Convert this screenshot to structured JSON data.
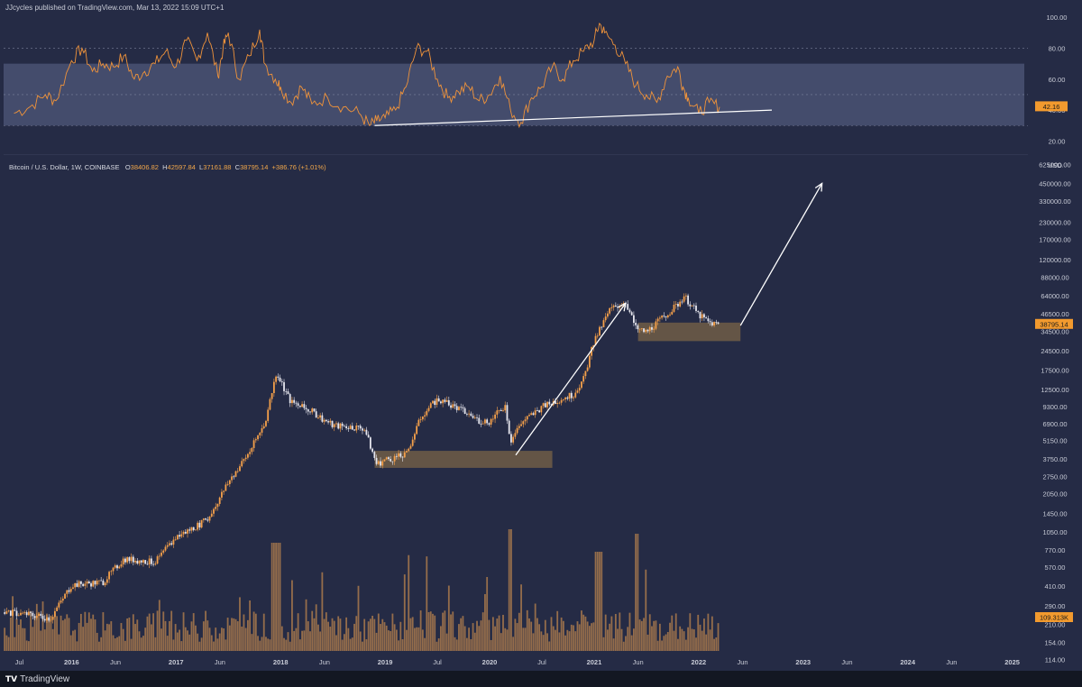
{
  "header": {
    "text": "JJcycles published on TradingView.com, Mar 13, 2022 15:09 UTC+1"
  },
  "legend": {
    "symbol": "Bitcoin / U.S. Dollar, 1W, COINBASE",
    "open_label": "O",
    "open": "38406.82",
    "high_label": "H",
    "high": "42597.84",
    "low_label": "L",
    "low": "37161.88",
    "close_label": "C",
    "close": "38795.14",
    "change": "+386.76 (+1.01%)"
  },
  "footer": {
    "brand": "TradingView",
    "logo_glyph": "TV"
  },
  "colors": {
    "background": "#252b45",
    "candle_up": "#f5a04a",
    "candle_down": "#e6e6ee",
    "rsi_line": "#f0933a",
    "band": "#4a5273",
    "zone": "#7a6447",
    "arrow": "#ffffff",
    "volume": "#c58a4f"
  },
  "chart_data": [
    {
      "type": "line",
      "name": "RSI pane",
      "yaxis_ticks": [
        "100.00",
        "80.00",
        "60.00",
        "40.00",
        "20.00"
      ],
      "ylim": [
        15,
        103
      ],
      "band": [
        30,
        70
      ],
      "last_value": "42.16",
      "x": [
        2015.45,
        2015.6,
        2015.75,
        2015.85,
        2016.0,
        2016.1,
        2016.2,
        2016.3,
        2016.4,
        2016.5,
        2016.6,
        2016.7,
        2016.8,
        2016.9,
        2017.0,
        2017.1,
        2017.2,
        2017.3,
        2017.4,
        2017.45,
        2017.5,
        2017.6,
        2017.7,
        2017.8,
        2017.85,
        2017.95,
        2018.0,
        2018.1,
        2018.2,
        2018.3,
        2018.45,
        2018.6,
        2018.75,
        2018.85,
        2018.92,
        2019.0,
        2019.1,
        2019.2,
        2019.3,
        2019.4,
        2019.5,
        2019.6,
        2019.7,
        2019.8,
        2019.9,
        2020.0,
        2020.1,
        2020.2,
        2020.3,
        2020.4,
        2020.5,
        2020.6,
        2020.7,
        2020.8,
        2020.9,
        2021.0,
        2021.05,
        2021.1,
        2021.2,
        2021.3,
        2021.4,
        2021.5,
        2021.6,
        2021.7,
        2021.8,
        2021.85,
        2021.9,
        2022.0,
        2022.1,
        2022.2
      ],
      "values": [
        38,
        42,
        50,
        46,
        72,
        80,
        65,
        70,
        68,
        75,
        60,
        65,
        70,
        78,
        68,
        85,
        72,
        90,
        62,
        80,
        90,
        60,
        75,
        92,
        70,
        60,
        55,
        45,
        55,
        44,
        48,
        42,
        38,
        30,
        33,
        35,
        40,
        55,
        80,
        78,
        60,
        48,
        52,
        55,
        46,
        50,
        62,
        40,
        32,
        48,
        55,
        68,
        60,
        72,
        78,
        85,
        96,
        90,
        82,
        70,
        56,
        50,
        45,
        62,
        68,
        55,
        48,
        38,
        45,
        42
      ],
      "trendline": {
        "x": [
          2018.9,
          2022.7
        ],
        "y": [
          30,
          40
        ]
      }
    },
    {
      "type": "line",
      "name": "Bitcoin / U.S. Dollar weekly candles",
      "title": "Bitcoin / U.S. Dollar, 1W, COINBASE",
      "ylabel": "USD",
      "yscale": "log",
      "ylim": [
        100,
        620000
      ],
      "yaxis_ticks": [
        "625000.00",
        "450000.00",
        "330000.00",
        "230000.00",
        "170000.00",
        "120000.00",
        "88000.00",
        "64000.00",
        "46500.00",
        "34500.00",
        "24500.00",
        "17500.00",
        "12500.00",
        "9300.00",
        "6900.00",
        "5150.00",
        "3750.00",
        "2750.00",
        "2050.00",
        "1450.00",
        "1050.00",
        "770.00",
        "570.00",
        "410.00",
        "290.00",
        "210.00",
        "154.00",
        "114.00"
      ],
      "xaxis_ticks": [
        "Jul",
        "2016",
        "Jun",
        "2017",
        "Jun",
        "2018",
        "Jun",
        "2019",
        "Jul",
        "2020",
        "Jul",
        "2021",
        "Jun",
        "2022",
        "Jun",
        "2023",
        "Jun",
        "2024",
        "Jun",
        "2025"
      ],
      "xaxis_tick_dates": [
        2015.5,
        2016.0,
        2016.42,
        2017.0,
        2017.42,
        2018.0,
        2018.42,
        2019.0,
        2019.5,
        2020.0,
        2020.5,
        2021.0,
        2021.42,
        2022.0,
        2022.42,
        2023.0,
        2023.42,
        2024.0,
        2024.42,
        2025.0
      ],
      "last_price": "38795.14",
      "price_anchor_x": [
        2015.35,
        2015.6,
        2015.8,
        2016.0,
        2016.3,
        2016.5,
        2016.8,
        2017.0,
        2017.3,
        2017.5,
        2017.7,
        2017.85,
        2017.96,
        2018.1,
        2018.3,
        2018.5,
        2018.8,
        2018.92,
        2019.0,
        2019.2,
        2019.35,
        2019.5,
        2019.7,
        2019.9,
        2020.0,
        2020.15,
        2020.2,
        2020.3,
        2020.5,
        2020.7,
        2020.8,
        2020.9,
        2021.0,
        2021.15,
        2021.3,
        2021.4,
        2021.5,
        2021.6,
        2021.8,
        2021.86,
        2022.0,
        2022.1,
        2022.2
      ],
      "price_anchor_y": [
        260,
        250,
        235,
        420,
        440,
        660,
        620,
        960,
        1300,
        2500,
        4200,
        7000,
        17000,
        10000,
        8500,
        6700,
        6400,
        3400,
        3700,
        4000,
        8000,
        10500,
        9000,
        7300,
        7200,
        9500,
        5100,
        7000,
        9200,
        10800,
        11500,
        15000,
        29000,
        50000,
        58000,
        36000,
        34000,
        40000,
        55000,
        64000,
        46000,
        40000,
        38795
      ],
      "volume": {
        "last_label": "109.313K"
      },
      "zones": [
        {
          "x": [
            2018.9,
            2020.6
          ],
          "y": [
            3200,
            4300
          ]
        },
        {
          "x": [
            2021.42,
            2022.4
          ],
          "y": [
            29000,
            40000
          ]
        }
      ],
      "arrows": [
        {
          "x": [
            2020.25,
            2021.3
          ],
          "y": [
            4000,
            56000
          ]
        },
        {
          "x": [
            2022.4,
            2023.18
          ],
          "y": [
            38000,
            450000
          ]
        }
      ]
    }
  ]
}
